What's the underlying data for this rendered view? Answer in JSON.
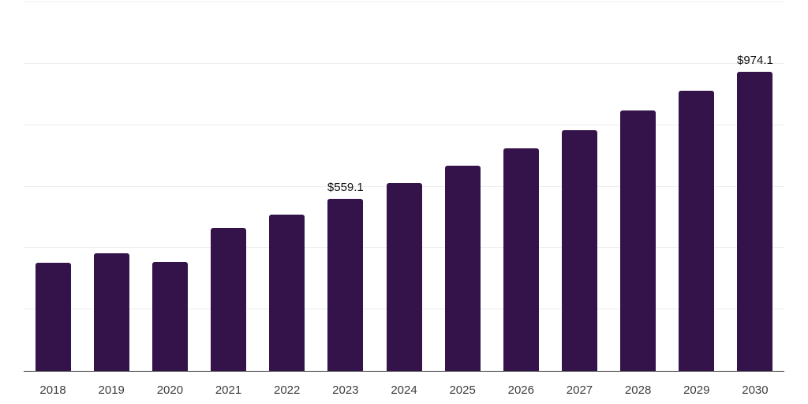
{
  "chart_data": {
    "type": "bar",
    "title": "",
    "xlabel": "",
    "ylabel": "",
    "categories": [
      "2018",
      "2019",
      "2020",
      "2021",
      "2022",
      "2023",
      "2024",
      "2025",
      "2026",
      "2027",
      "2028",
      "2029",
      "2030"
    ],
    "values": [
      351,
      384,
      354,
      464,
      510,
      559.1,
      611,
      667,
      724,
      785,
      849,
      911,
      974.1
    ],
    "value_labels": {
      "2023": "$559.1",
      "2030": "$974.1"
    },
    "ylim": [
      0,
      1200
    ],
    "gridline_step": 200,
    "grid": "horizontal",
    "y_tick_labels_shown": false,
    "legend_position": "none",
    "colors": {
      "bar": "#331349",
      "gridline": "#ededed",
      "axis_line": "#333333",
      "tick_label": "#3d3d3d",
      "value_label": "#111111",
      "background": "#ffffff"
    }
  }
}
